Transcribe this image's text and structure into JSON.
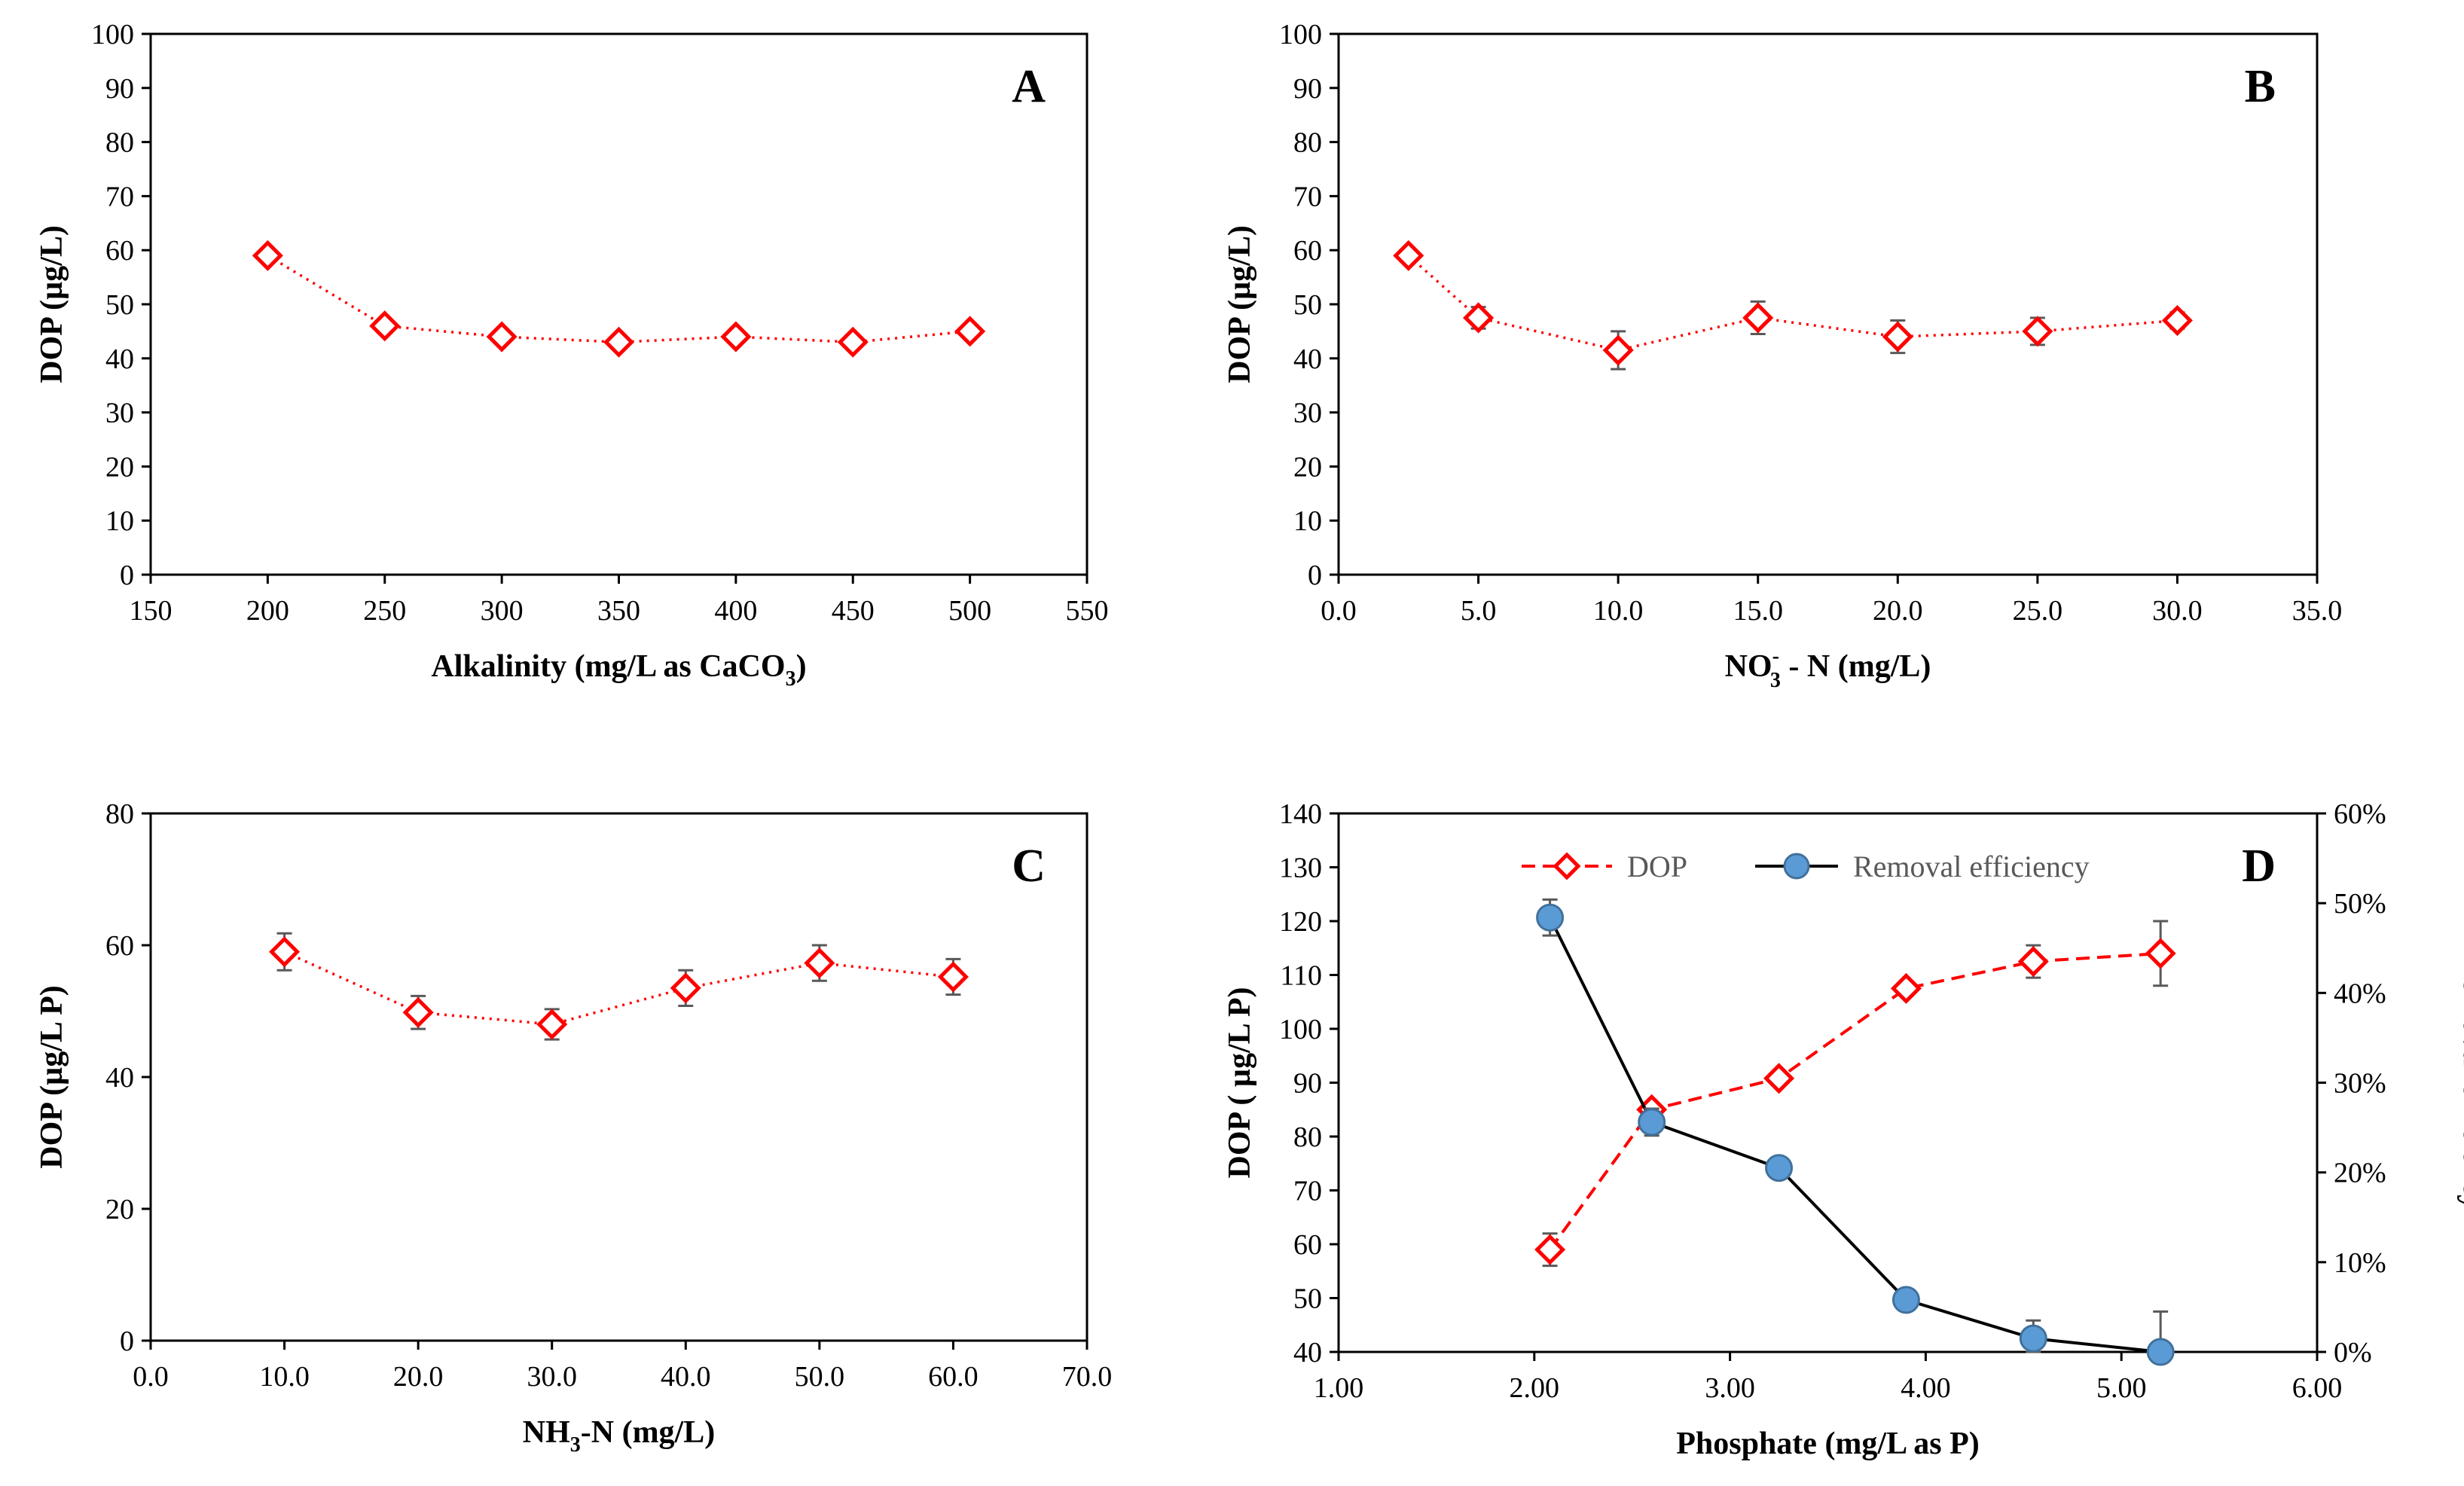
{
  "colors": {
    "dop_marker": "#ff0000",
    "dop_line": "#ff0000",
    "removal_marker_fill": "#5b9bd5",
    "removal_line": "#000000",
    "error_bar": "#595959",
    "axis": "#000000"
  },
  "chart_data": [
    {
      "panel": "A",
      "type": "line",
      "xlabel": "Alkalinity (mg/L as CaCO",
      "xlabel_sub": "3",
      "xlabel_end": ")",
      "ylabel": "DOP (µg/L)",
      "xlim": [
        150,
        550
      ],
      "ylim": [
        0,
        100
      ],
      "x_ticks": [
        150,
        200,
        250,
        300,
        350,
        400,
        450,
        500,
        550
      ],
      "x_tick_labels": [
        "150",
        "200",
        "250",
        "300",
        "350",
        "400",
        "450",
        "500",
        "550"
      ],
      "y_ticks": [
        0,
        10,
        20,
        30,
        40,
        50,
        60,
        70,
        80,
        90,
        100
      ],
      "y_tick_labels": [
        "0",
        "10",
        "20",
        "30",
        "40",
        "50",
        "60",
        "70",
        "80",
        "90",
        "100"
      ],
      "line_style": "dotted",
      "marker": "diamond",
      "x": [
        200,
        250,
        300,
        350,
        400,
        450,
        500
      ],
      "y": [
        59,
        46,
        44,
        43,
        44,
        43,
        45
      ],
      "err": [
        0.8,
        1.0,
        1.0,
        0.8,
        1.0,
        0.8,
        1.0
      ]
    },
    {
      "panel": "B",
      "type": "line",
      "xlabel": "NO",
      "xlabel_sub": "3",
      "xlabel_sup": "-",
      "xlabel_end": " - N (mg/L)",
      "ylabel": "DOP (µg/L)",
      "xlim": [
        0,
        35
      ],
      "ylim": [
        0,
        100
      ],
      "x_ticks": [
        0,
        5,
        10,
        15,
        20,
        25,
        30,
        35
      ],
      "x_tick_labels": [
        "0.0",
        "5.0",
        "10.0",
        "15.0",
        "20.0",
        "25.0",
        "30.0",
        "35.0"
      ],
      "y_ticks": [
        0,
        10,
        20,
        30,
        40,
        50,
        60,
        70,
        80,
        90,
        100
      ],
      "y_tick_labels": [
        "0",
        "10",
        "20",
        "30",
        "40",
        "50",
        "60",
        "70",
        "80",
        "90",
        "100"
      ],
      "line_style": "dotted",
      "marker": "diamond",
      "x": [
        2.5,
        5,
        10,
        15,
        20,
        25,
        30
      ],
      "y": [
        59,
        47.5,
        41.5,
        47.5,
        44,
        45,
        47
      ],
      "err": [
        1.0,
        2.0,
        3.5,
        3.0,
        3.0,
        2.5,
        1.5
      ]
    },
    {
      "panel": "C",
      "type": "line",
      "xlabel": "NH",
      "xlabel_sub": "3",
      "xlabel_end": "-N  (mg/L)",
      "ylabel": "DOP (µg/L P)",
      "xlim": [
        0,
        70
      ],
      "ylim": [
        0,
        80
      ],
      "x_ticks": [
        0,
        10,
        20,
        30,
        40,
        50,
        60,
        70
      ],
      "x_tick_labels": [
        "0.0",
        "10.0",
        "20.0",
        "30.0",
        "40.0",
        "50.0",
        "60.0",
        "70.0"
      ],
      "y_ticks": [
        0,
        20,
        40,
        60,
        80
      ],
      "y_tick_labels": [
        "0",
        "20",
        "40",
        "60",
        "80"
      ],
      "line_style": "dotted",
      "marker": "diamond",
      "x": [
        10,
        20,
        30,
        40,
        50,
        60
      ],
      "y": [
        59,
        49.8,
        48,
        53.5,
        57.3,
        55.2
      ],
      "err": [
        2.8,
        2.5,
        2.3,
        2.7,
        2.7,
        2.7
      ]
    },
    {
      "panel": "D",
      "type": "line",
      "xlabel": "Phosphate (mg/L as P)",
      "ylabel": "DOP ( µg/L P)",
      "y2label": "Removal efficiency",
      "xlim": [
        1,
        6
      ],
      "ylim": [
        40,
        140
      ],
      "y2lim": [
        0,
        0.6
      ],
      "x_ticks": [
        1,
        2,
        3,
        4,
        5,
        6
      ],
      "x_tick_labels": [
        "1.00",
        "2.00",
        "3.00",
        "4.00",
        "5.00",
        "6.00"
      ],
      "y_ticks": [
        40,
        50,
        60,
        70,
        80,
        90,
        100,
        110,
        120,
        130,
        140
      ],
      "y_tick_labels": [
        "40",
        "50",
        "60",
        "70",
        "80",
        "90",
        "100",
        "110",
        "120",
        "130",
        "140"
      ],
      "y2_ticks": [
        0,
        0.1,
        0.2,
        0.3,
        0.4,
        0.5,
        0.6
      ],
      "y2_tick_labels": [
        "0%",
        "10%",
        "20%",
        "30%",
        "40%",
        "50%",
        "60%"
      ],
      "legend_position": "top",
      "series": [
        {
          "name": "DOP",
          "axis": "left",
          "line_style": "dashed",
          "marker": "diamond",
          "x": [
            2.08,
            2.6,
            3.25,
            3.9,
            4.55,
            5.2
          ],
          "y": [
            59,
            85,
            90.8,
            107.5,
            112.5,
            114
          ],
          "err": [
            3.0,
            0.7,
            0.7,
            1.0,
            3.0,
            6.0
          ]
        },
        {
          "name": "Removal efficiency",
          "axis": "right",
          "line_style": "solid",
          "marker": "circle",
          "x": [
            2.08,
            2.6,
            3.25,
            3.9,
            4.55,
            5.2
          ],
          "y": [
            0.484,
            0.256,
            0.205,
            0.058,
            0.015,
            0.0
          ],
          "err": [
            0.02,
            0.015,
            0.0,
            0.0,
            0.02,
            0.045
          ]
        }
      ]
    }
  ]
}
